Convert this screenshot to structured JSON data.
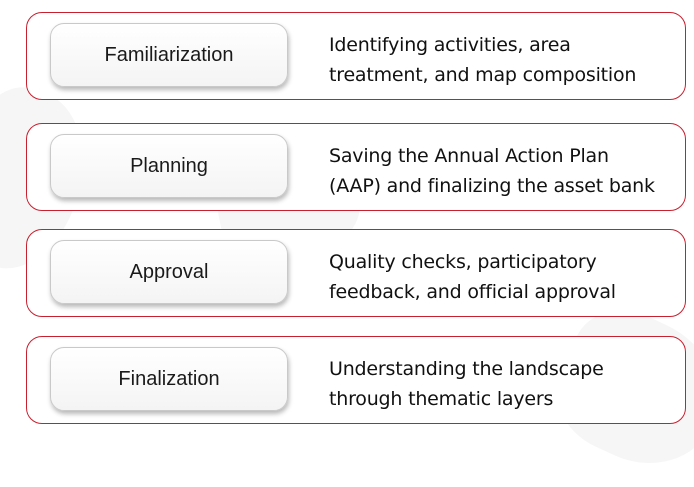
{
  "stages": [
    {
      "label": "Familiarization",
      "desc_line1": "Identifying activities, area",
      "desc_line2": "treatment, and map composition"
    },
    {
      "label": "Planning",
      "desc_line1": "Saving the Annual Action Plan",
      "desc_line2": "(AAP) and finalizing the asset bank"
    },
    {
      "label": "Approval",
      "desc_line1": "Quality checks, participatory",
      "desc_line2": "feedback, and official approval"
    },
    {
      "label": "Finalization",
      "desc_line1": "Understanding the landscape",
      "desc_line2": "through thematic layers"
    }
  ],
  "colors": {
    "card_border": "#c8202f",
    "pill_fill": "#f4f4f4",
    "text": "#111111"
  }
}
